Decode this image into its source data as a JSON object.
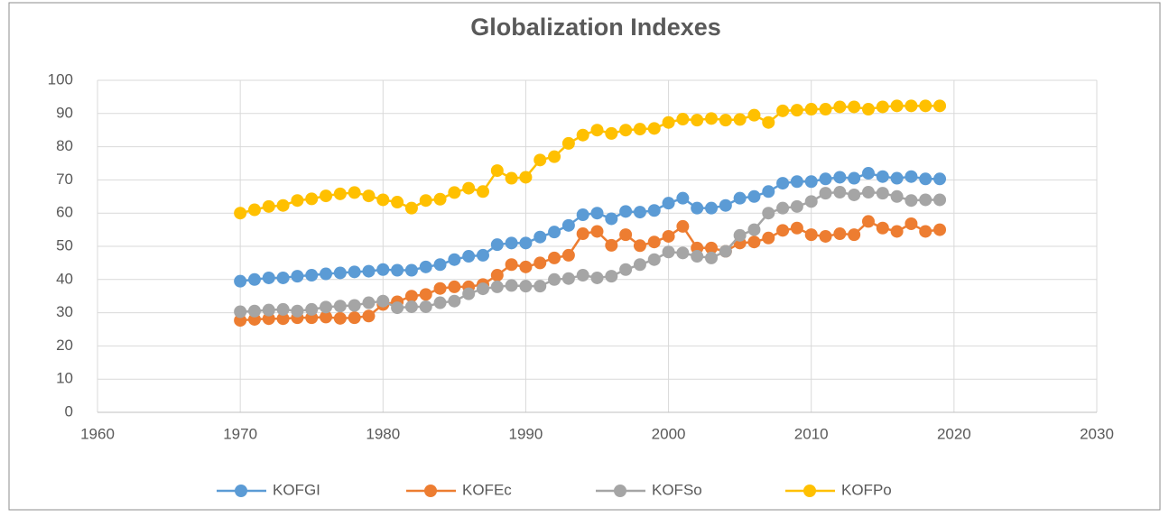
{
  "chart_data": {
    "type": "line",
    "title": "Globalization Indexes",
    "x": [
      1970,
      1971,
      1972,
      1973,
      1974,
      1975,
      1976,
      1977,
      1978,
      1979,
      1980,
      1981,
      1982,
      1983,
      1984,
      1985,
      1986,
      1987,
      1988,
      1989,
      1990,
      1991,
      1992,
      1993,
      1994,
      1995,
      1996,
      1997,
      1998,
      1999,
      2000,
      2001,
      2002,
      2003,
      2004,
      2005,
      2006,
      2007,
      2008,
      2009,
      2010,
      2011,
      2012,
      2013,
      2014,
      2015,
      2016,
      2017,
      2018,
      2019
    ],
    "series": [
      {
        "name": "KOFGI",
        "color": "#5b9bd5",
        "values": [
          39.5,
          40,
          40.5,
          40.5,
          41,
          41.3,
          41.7,
          42,
          42.3,
          42.5,
          43,
          42.8,
          42.8,
          43.8,
          44.5,
          46,
          47,
          47.3,
          50.5,
          51,
          51,
          52.8,
          54.3,
          56.3,
          59.5,
          60,
          58.3,
          60.5,
          60.3,
          60.8,
          63,
          64.5,
          61.5,
          61.5,
          62.3,
          64.5,
          65,
          66.5,
          69,
          69.5,
          69.5,
          70.3,
          70.8,
          70.5,
          72,
          71,
          70.5,
          71,
          70.3,
          70.3
        ]
      },
      {
        "name": "KOFEc",
        "color": "#ed7d31",
        "values": [
          27.7,
          28,
          28.2,
          28.2,
          28.5,
          28.5,
          28.7,
          28.3,
          28.5,
          29,
          32.5,
          33.3,
          35,
          35.5,
          37.3,
          37.8,
          37.8,
          38.5,
          41.3,
          44.5,
          43.8,
          45,
          46.5,
          47.3,
          53.8,
          54.5,
          50.3,
          53.5,
          50.2,
          51.3,
          53,
          56,
          49.5,
          49.5,
          48.5,
          51,
          51.3,
          52.5,
          54.8,
          55.5,
          53.5,
          53,
          53.8,
          53.5,
          57.5,
          55.5,
          54.5,
          56.8,
          54.5,
          55
        ]
      },
      {
        "name": "KOFSo",
        "color": "#a5a5a5",
        "values": [
          30.3,
          30.5,
          30.8,
          31,
          30.5,
          31,
          31.7,
          32,
          32.2,
          33,
          33.5,
          31.5,
          31.8,
          31.8,
          33,
          33.5,
          35.7,
          37.2,
          37.8,
          38.2,
          38,
          38,
          40,
          40.3,
          41.3,
          40.5,
          41,
          43,
          44.5,
          46,
          48.3,
          48,
          47,
          46.5,
          48.5,
          53.3,
          55,
          60,
          61.5,
          62,
          63.5,
          66,
          66.3,
          65.5,
          66.3,
          66,
          65,
          63.8,
          64,
          64
        ]
      },
      {
        "name": "KOFPo",
        "color": "#ffc000",
        "values": [
          60,
          61,
          62,
          62.3,
          63.8,
          64.3,
          65.2,
          65.8,
          66.2,
          65.2,
          64,
          63.3,
          61.5,
          63.8,
          64.2,
          66.2,
          67.5,
          66.5,
          72.8,
          70.5,
          70.8,
          76,
          77,
          81,
          83.5,
          85,
          84,
          85,
          85.3,
          85.5,
          87.3,
          88.3,
          88,
          88.5,
          88,
          88.2,
          89.5,
          87.3,
          90.8,
          91,
          91.3,
          91.3,
          92,
          92,
          91.3,
          92,
          92.3,
          92.3,
          92.3,
          92.3
        ]
      }
    ],
    "xlim": [
      1960,
      2030
    ],
    "xticks": [
      1960,
      1970,
      1980,
      1990,
      2000,
      2010,
      2020,
      2030
    ],
    "ylim": [
      0,
      100
    ],
    "yticks": [
      0,
      10,
      20,
      30,
      40,
      50,
      60,
      70,
      80,
      90,
      100
    ],
    "grid": true,
    "legend": "bottom"
  }
}
